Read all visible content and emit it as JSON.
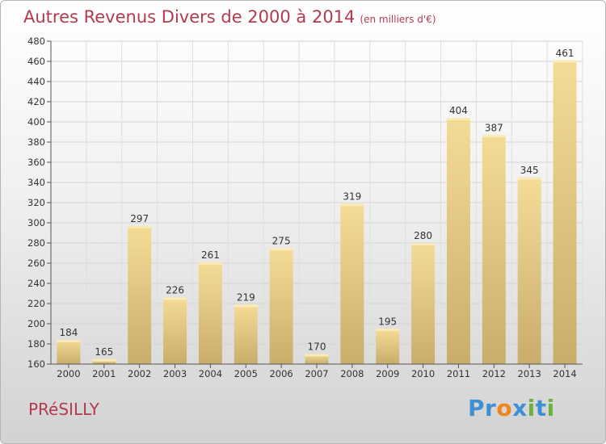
{
  "chart_data": {
    "type": "bar",
    "title": "Autres Revenus Divers de 2000 à 2014",
    "subtitle": "(en milliers d'€)",
    "categories": [
      "2000",
      "2001",
      "2002",
      "2003",
      "2004",
      "2005",
      "2006",
      "2007",
      "2008",
      "2009",
      "2010",
      "2011",
      "2012",
      "2013",
      "2014"
    ],
    "values": [
      184,
      165,
      297,
      226,
      261,
      219,
      275,
      170,
      319,
      195,
      280,
      404,
      387,
      345,
      461
    ],
    "ylim": [
      160,
      480
    ],
    "yticks": [
      160,
      180,
      200,
      220,
      240,
      260,
      280,
      300,
      320,
      340,
      360,
      380,
      400,
      420,
      440,
      460,
      480
    ],
    "xlabel": "",
    "ylabel": "",
    "grid": true,
    "bar_color": "#e8cc82"
  },
  "footer": {
    "commune": "PRéSILLY",
    "logo_text": "Proxiti"
  }
}
